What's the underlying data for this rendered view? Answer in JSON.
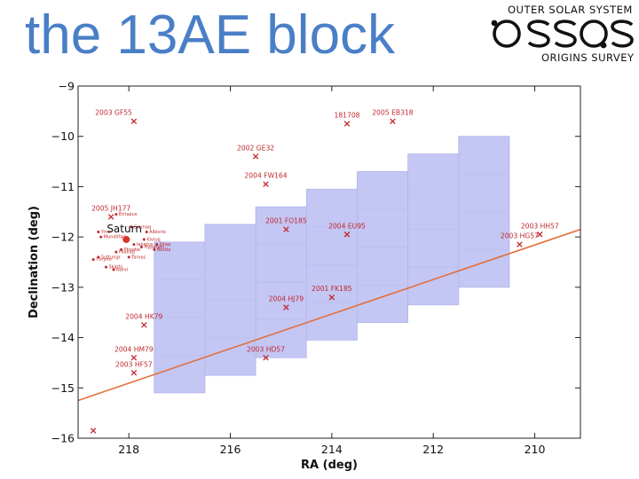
{
  "slide": {
    "title": "the 13AE block"
  },
  "logo": {
    "top_text": "OUTER SOLAR SYSTEM",
    "mark_text": "OSSOS",
    "bottom_text": "ORIGINS SURVEY"
  },
  "chart_data": {
    "type": "scatter",
    "xlabel": "RA (deg)",
    "ylabel": "Declination (deg)",
    "xlim": [
      219,
      209.1
    ],
    "ylim": [
      -16,
      -9
    ],
    "xticks": [
      218,
      216,
      214,
      212,
      210
    ],
    "yticks": [
      -9,
      -10,
      -11,
      -12,
      -13,
      -14,
      -15,
      -16
    ],
    "colors": {
      "objects": "#c0282d",
      "field_fill": "#c4c6f4",
      "field_edge": "#b3b6ea",
      "ecliptic": "#e36f3a"
    },
    "fields": [
      {
        "ra_min": 216.5,
        "ra_max": 217.5,
        "dec_min": -15.1,
        "dec_max": -12.1
      },
      {
        "ra_min": 215.5,
        "ra_max": 216.5,
        "dec_min": -14.75,
        "dec_max": -11.75
      },
      {
        "ra_min": 214.5,
        "ra_max": 215.5,
        "dec_min": -14.4,
        "dec_max": -11.4
      },
      {
        "ra_min": 213.5,
        "ra_max": 214.5,
        "dec_min": -14.05,
        "dec_max": -11.05
      },
      {
        "ra_min": 212.5,
        "ra_max": 213.5,
        "dec_min": -13.7,
        "dec_max": -10.7
      },
      {
        "ra_min": 211.5,
        "ra_max": 212.5,
        "dec_min": -13.35,
        "dec_max": -10.35
      },
      {
        "ra_min": 210.5,
        "ra_max": 211.5,
        "dec_min": -13.0,
        "dec_max": -10.0
      }
    ],
    "ecliptic": {
      "x": [
        219,
        209.1
      ],
      "y": [
        -15.25,
        -11.85
      ]
    },
    "objects": [
      {
        "name": "2003 GF55",
        "ra": 217.9,
        "dec": -9.7,
        "side": "left"
      },
      {
        "name": "181708",
        "ra": 213.7,
        "dec": -9.75,
        "side": "up"
      },
      {
        "name": "2005 EB318",
        "ra": 212.8,
        "dec": -9.7,
        "side": "up"
      },
      {
        "name": "2002 GE32",
        "ra": 215.5,
        "dec": -10.4,
        "side": "up"
      },
      {
        "name": "2004 FW164",
        "ra": 215.3,
        "dec": -10.95,
        "side": "up"
      },
      {
        "name": "2005 JH177",
        "ra": 218.35,
        "dec": -11.6,
        "side": "up"
      },
      {
        "name": "2001 FO185",
        "ra": 214.9,
        "dec": -11.85,
        "side": "up"
      },
      {
        "name": "2004 EU95",
        "ra": 213.7,
        "dec": -11.95,
        "side": "up"
      },
      {
        "name": "2003 HH57",
        "ra": 209.9,
        "dec": -11.95,
        "side": "up"
      },
      {
        "name": "2003 HG57",
        "ra": 210.3,
        "dec": -12.15,
        "side": "up"
      },
      {
        "name": "2001 FK185",
        "ra": 214.0,
        "dec": -13.2,
        "side": "up"
      },
      {
        "name": "2004 HJ79",
        "ra": 214.9,
        "dec": -13.4,
        "side": "up"
      },
      {
        "name": "2004 HK79",
        "ra": 217.7,
        "dec": -13.75,
        "side": "up"
      },
      {
        "name": "2003 HD57",
        "ra": 215.3,
        "dec": -14.4,
        "side": "up"
      },
      {
        "name": "2004 HM79",
        "ra": 217.9,
        "dec": -14.4,
        "side": "up"
      },
      {
        "name": "2003 HF57",
        "ra": 217.9,
        "dec": -14.7,
        "side": "up"
      },
      {
        "name": "",
        "ra": 218.7,
        "dec": -15.85,
        "side": "none"
      }
    ],
    "saturn": {
      "label": "Saturn",
      "ra": 218.05,
      "dec": -12.05
    },
    "moons": [
      {
        "name": "Ymir",
        "ra": 218.6,
        "dec": -11.9
      },
      {
        "name": "Erriapus",
        "ra": 218.25,
        "dec": -11.55
      },
      {
        "name": "Mundilfari",
        "ra": 218.55,
        "dec": -12.0
      },
      {
        "name": "Suttungr",
        "ra": 218.6,
        "dec": -12.4
      },
      {
        "name": "Thrymr",
        "ra": 218.7,
        "dec": -12.45
      },
      {
        "name": "Skathi",
        "ra": 218.45,
        "dec": -12.6
      },
      {
        "name": "Narvi",
        "ra": 218.3,
        "dec": -12.65
      },
      {
        "name": "Paaliaq",
        "ra": 218.25,
        "dec": -12.3
      },
      {
        "name": "Tarvos",
        "ra": 218.0,
        "dec": -12.4
      },
      {
        "name": "Siarnaq",
        "ra": 217.95,
        "dec": -11.8
      },
      {
        "name": "Albiorix",
        "ra": 217.65,
        "dec": -11.9
      },
      {
        "name": "Kiviuq",
        "ra": 217.7,
        "dec": -12.05
      },
      {
        "name": "Ijiraq",
        "ra": 217.45,
        "dec": -12.15
      },
      {
        "name": "Iapetus",
        "ra": 217.9,
        "dec": -12.15
      },
      {
        "name": "Hyperion",
        "ra": 217.75,
        "dec": -12.2
      },
      {
        "name": "Phoebe",
        "ra": 218.15,
        "dec": -12.25
      },
      {
        "name": "Bestla",
        "ra": 217.5,
        "dec": -12.25
      }
    ]
  }
}
